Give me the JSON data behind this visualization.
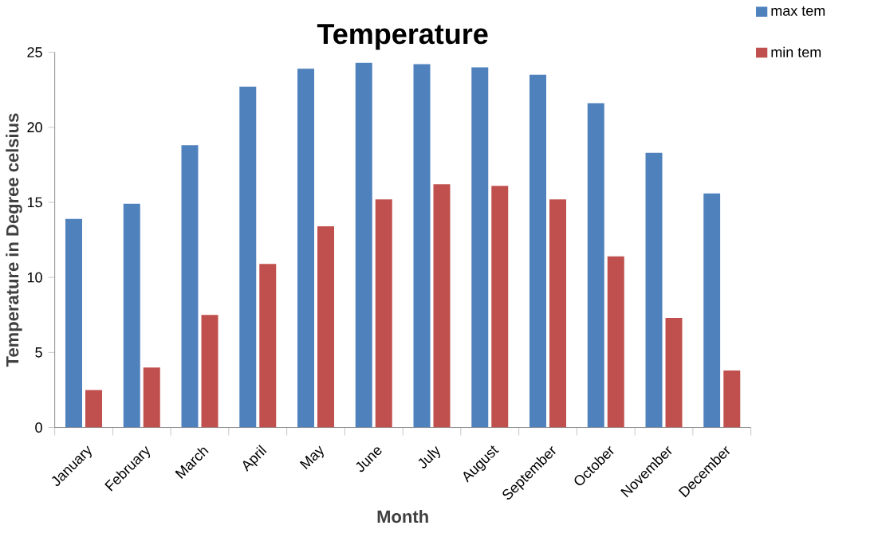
{
  "chart_data": {
    "type": "bar",
    "title": "Temperature",
    "xlabel": "Month",
    "ylabel": "Temperature in Degree celsius",
    "categories": [
      "January",
      "February",
      "March",
      "April",
      "May",
      "June",
      "July",
      "August",
      "September",
      "October",
      "November",
      "December"
    ],
    "series": [
      {
        "name": "max tem",
        "color": "#4f81bd",
        "values": [
          13.9,
          14.9,
          18.8,
          22.7,
          23.9,
          24.3,
          24.2,
          24.0,
          23.5,
          21.6,
          18.3,
          15.6
        ]
      },
      {
        "name": "min tem",
        "color": "#c0504d",
        "values": [
          2.5,
          4.0,
          7.5,
          10.9,
          13.4,
          15.2,
          16.2,
          16.1,
          15.2,
          11.4,
          7.3,
          3.8
        ]
      }
    ],
    "ylim": [
      0,
      25
    ],
    "yticks": [
      0,
      5,
      10,
      15,
      20,
      25
    ],
    "legend": "top right"
  }
}
